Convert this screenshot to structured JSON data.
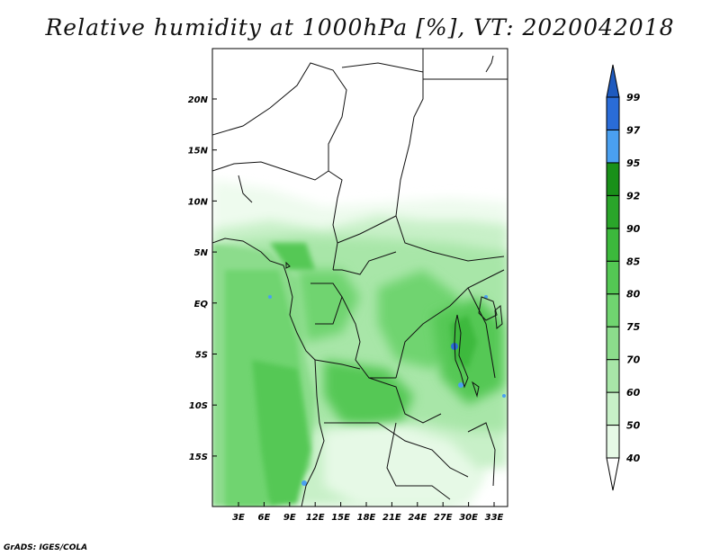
{
  "title": "Relative humidity at 1000hPa [%], VT: 2020042018",
  "footer": "GrADS: IGES/COLA",
  "map": {
    "lat_labels": [
      "20N",
      "15N",
      "10N",
      "5N",
      "EQ",
      "5S",
      "10S",
      "15S"
    ],
    "lon_labels": [
      "3E",
      "6E",
      "9E",
      "12E",
      "15E",
      "18E",
      "21E",
      "24E",
      "27E",
      "30E",
      "33E"
    ],
    "lat_range": [
      -20,
      25
    ],
    "lon_range": [
      0,
      35
    ]
  },
  "colorbar": {
    "levels": [
      "40",
      "50",
      "60",
      "70",
      "75",
      "80",
      "85",
      "90",
      "92",
      "95",
      "97",
      "99"
    ],
    "colors": [
      "#ffffff",
      "#e6f9e6",
      "#c8f0c8",
      "#a8e6a8",
      "#8cdc8c",
      "#70d470",
      "#54c854",
      "#3cb93c",
      "#2aa52a",
      "#199019",
      "#4aa0f0",
      "#2a6cd8",
      "#1e5abf"
    ],
    "colors_note": "bottom triangle, 12 level bands from 40-50 up to 99+, top triangle"
  }
}
